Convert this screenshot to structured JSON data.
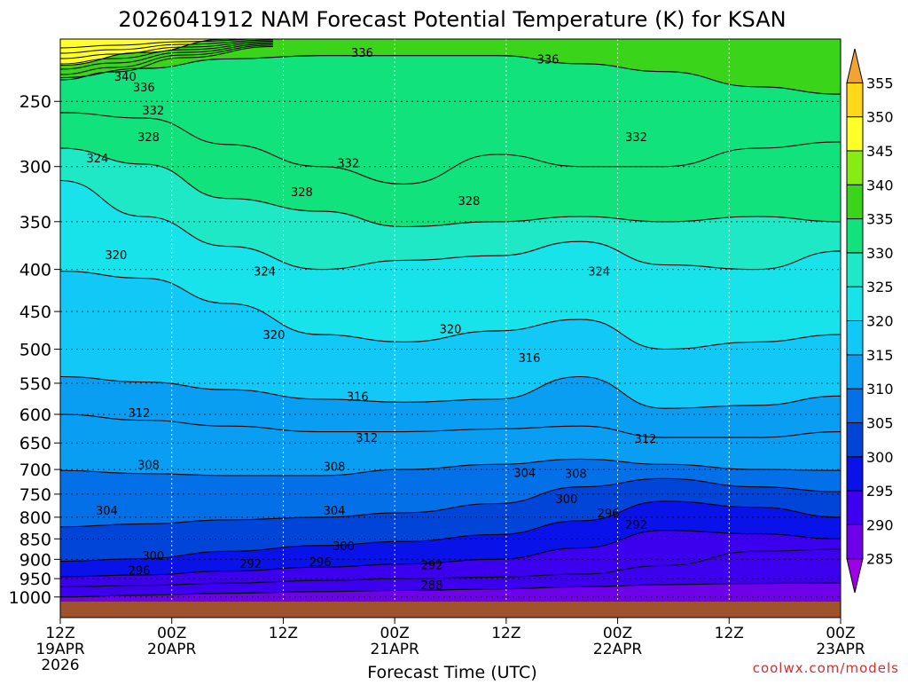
{
  "chart_data": {
    "type": "heatmap",
    "title": "2026041912 NAM Forecast Potential Temperature (K) for KSAN",
    "xlabel": "Forecast Time (UTC)",
    "ylabel": "",
    "credit": "coolwx.com/models",
    "x_ticks": [
      {
        "hour": 0,
        "line1": "12Z",
        "line2": "19APR",
        "line3": "2026"
      },
      {
        "hour": 12,
        "line1": "00Z",
        "line2": "20APR",
        "line3": ""
      },
      {
        "hour": 24,
        "line1": "12Z",
        "line2": "",
        "line3": ""
      },
      {
        "hour": 36,
        "line1": "00Z",
        "line2": "21APR",
        "line3": ""
      },
      {
        "hour": 48,
        "line1": "12Z",
        "line2": "",
        "line3": ""
      },
      {
        "hour": 60,
        "line1": "00Z",
        "line2": "22APR",
        "line3": ""
      },
      {
        "hour": 72,
        "line1": "12Z",
        "line2": "",
        "line3": ""
      },
      {
        "hour": 84,
        "line1": "00Z",
        "line2": "23APR",
        "line3": ""
      }
    ],
    "xlim": [
      0,
      84
    ],
    "y_scale": "log-pressure",
    "y_ticks": [
      250,
      300,
      350,
      400,
      450,
      500,
      550,
      600,
      650,
      700,
      750,
      800,
      850,
      900,
      950,
      1000
    ],
    "ylim": [
      1013,
      210
    ],
    "colorbar": {
      "levels": [
        285,
        290,
        295,
        300,
        305,
        310,
        315,
        320,
        325,
        330,
        335,
        340,
        345,
        350,
        355
      ],
      "colors": [
        "#a000e8",
        "#6e00ea",
        "#3c00ee",
        "#0a12ea",
        "#0044d8",
        "#0470e8",
        "#0a9ef2",
        "#12c8f6",
        "#18e2ea",
        "#1ee8c6",
        "#12e27c",
        "#3ad41a",
        "#86ec12",
        "#ffff2a",
        "#ffd81a",
        "#f2a430"
      ],
      "extend": "both"
    },
    "isotherms": [
      {
        "value": 288,
        "p": [
          1000,
          995,
          990,
          985,
          982,
          978,
          972,
          966,
          963,
          962
        ]
      },
      {
        "value": 292,
        "p": [
          972,
          968,
          962,
          955,
          950,
          946,
          938,
          916,
          880,
          875
        ]
      },
      {
        "value": 296,
        "p": [
          945,
          940,
          930,
          920,
          912,
          900,
          872,
          830,
          838,
          850
        ]
      },
      {
        "value": 300,
        "p": [
          905,
          898,
          880,
          866,
          856,
          840,
          808,
          765,
          778,
          800
        ]
      },
      {
        "value": 304,
        "p": [
          822,
          815,
          806,
          800,
          790,
          770,
          735,
          718,
          735,
          745
        ]
      },
      {
        "value": 308,
        "p": [
          702,
          708,
          712,
          712,
          700,
          690,
          680,
          690,
          700,
          702
        ]
      },
      {
        "value": 312,
        "p": [
          600,
          610,
          620,
          630,
          630,
          625,
          620,
          640,
          640,
          630
        ]
      },
      {
        "value": 316,
        "p": [
          540,
          548,
          560,
          575,
          580,
          575,
          540,
          590,
          585,
          570
        ]
      },
      {
        "value": 320,
        "p": [
          402,
          410,
          440,
          480,
          490,
          475,
          460,
          500,
          490,
          480
        ]
      },
      {
        "value": 324,
        "p": [
          312,
          345,
          375,
          400,
          390,
          385,
          370,
          395,
          400,
          380
        ]
      },
      {
        "value": 328,
        "p": [
          285,
          298,
          328,
          340,
          355,
          350,
          345,
          350,
          345,
          350
        ]
      },
      {
        "value": 332,
        "p": [
          258,
          262,
          282,
          300,
          315,
          290,
          300,
          300,
          285,
          280
        ]
      },
      {
        "value": 336,
        "p": [
          234,
          228,
          222,
          220,
          220,
          220,
          225,
          230,
          240,
          245
        ]
      },
      {
        "value": 340,
        "p": [
          226,
          218,
          210,
          210,
          210,
          210,
          210,
          210,
          210,
          210
        ]
      }
    ],
    "contour_hours": [
      0,
      9,
      18,
      28,
      37,
      47,
      56,
      65,
      75,
      84
    ],
    "contour_labels": [
      {
        "value": "336",
        "hour": 32.5,
        "p": 218
      },
      {
        "value": "336",
        "hour": 52.5,
        "p": 222
      },
      {
        "value": "340",
        "hour": 7,
        "p": 233
      },
      {
        "value": "336",
        "hour": 9,
        "p": 240
      },
      {
        "value": "332",
        "hour": 10,
        "p": 256
      },
      {
        "value": "328",
        "hour": 9.5,
        "p": 276
      },
      {
        "value": "324",
        "hour": 4,
        "p": 293
      },
      {
        "value": "332",
        "hour": 62,
        "p": 276
      },
      {
        "value": "332",
        "hour": 31,
        "p": 297
      },
      {
        "value": "328",
        "hour": 26,
        "p": 322
      },
      {
        "value": "328",
        "hour": 44,
        "p": 330
      },
      {
        "value": "320",
        "hour": 6,
        "p": 384
      },
      {
        "value": "324",
        "hour": 22,
        "p": 402
      },
      {
        "value": "324",
        "hour": 58,
        "p": 402
      },
      {
        "value": "320",
        "hour": 23,
        "p": 480
      },
      {
        "value": "320",
        "hour": 42,
        "p": 472
      },
      {
        "value": "316",
        "hour": 50.5,
        "p": 512
      },
      {
        "value": "316",
        "hour": 32,
        "p": 570
      },
      {
        "value": "312",
        "hour": 8.5,
        "p": 597
      },
      {
        "value": "312",
        "hour": 33,
        "p": 640
      },
      {
        "value": "312",
        "hour": 63,
        "p": 642
      },
      {
        "value": "308",
        "hour": 9.5,
        "p": 690
      },
      {
        "value": "308",
        "hour": 29.5,
        "p": 694
      },
      {
        "value": "304",
        "hour": 50,
        "p": 706
      },
      {
        "value": "308",
        "hour": 55.5,
        "p": 708
      },
      {
        "value": "304",
        "hour": 5,
        "p": 784
      },
      {
        "value": "304",
        "hour": 29.5,
        "p": 784
      },
      {
        "value": "300",
        "hour": 54.5,
        "p": 760
      },
      {
        "value": "296",
        "hour": 59,
        "p": 790
      },
      {
        "value": "292",
        "hour": 62,
        "p": 816
      },
      {
        "value": "300",
        "hour": 10,
        "p": 890
      },
      {
        "value": "300",
        "hour": 30.5,
        "p": 866
      },
      {
        "value": "296",
        "hour": 8.5,
        "p": 928
      },
      {
        "value": "292",
        "hour": 20.5,
        "p": 910
      },
      {
        "value": "296",
        "hour": 28,
        "p": 906
      },
      {
        "value": "292",
        "hour": 40,
        "p": 914
      },
      {
        "value": "288",
        "hour": 40,
        "p": 966
      }
    ]
  }
}
